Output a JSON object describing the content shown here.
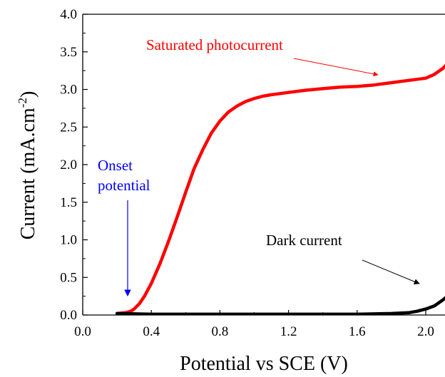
{
  "chart_data": {
    "type": "line",
    "xlabel": "Potential vs SCE (V)",
    "ylabel_main": "Current (mA.cm",
    "ylabel_sup": "-2",
    "ylabel_close": ")",
    "xlim": [
      0.0,
      2.2
    ],
    "ylim": [
      0.0,
      4.0
    ],
    "xticks": [
      0.0,
      0.4,
      0.8,
      1.2,
      1.6,
      2.0
    ],
    "xtick_labels": [
      "0.0",
      "0.4",
      "0.8",
      "1.2",
      "1.6",
      "2.0"
    ],
    "yticks": [
      0.0,
      0.5,
      1.0,
      1.5,
      2.0,
      2.5,
      3.0,
      3.5,
      4.0
    ],
    "ytick_labels": [
      "0.0",
      "0.5",
      "1.0",
      "1.5",
      "2.0",
      "2.5",
      "3.0",
      "3.5",
      "4.0"
    ],
    "grid": false,
    "series": [
      {
        "color": "#ff0000",
        "x": [
          0.2,
          0.25,
          0.28,
          0.3,
          0.33,
          0.36,
          0.4,
          0.45,
          0.5,
          0.55,
          0.6,
          0.65,
          0.7,
          0.75,
          0.8,
          0.85,
          0.9,
          0.95,
          1.0,
          1.05,
          1.1,
          1.2,
          1.3,
          1.4,
          1.5,
          1.6,
          1.7,
          1.8,
          1.9,
          2.0,
          2.05,
          2.1,
          2.15,
          2.2
        ],
        "y": [
          0.02,
          0.03,
          0.05,
          0.08,
          0.15,
          0.25,
          0.42,
          0.68,
          0.98,
          1.3,
          1.63,
          1.95,
          2.2,
          2.42,
          2.58,
          2.7,
          2.78,
          2.84,
          2.88,
          2.91,
          2.93,
          2.96,
          2.99,
          3.01,
          3.03,
          3.04,
          3.06,
          3.09,
          3.12,
          3.15,
          3.2,
          3.28,
          3.4,
          3.55
        ]
      },
      {
        "color": "#000000",
        "x": [
          0.2,
          0.4,
          0.8,
          1.2,
          1.6,
          1.8,
          1.9,
          1.95,
          2.0,
          2.05,
          2.1,
          2.15,
          2.2
        ],
        "y": [
          0.02,
          0.01,
          0.01,
          0.01,
          0.01,
          0.02,
          0.03,
          0.05,
          0.08,
          0.12,
          0.2,
          0.3,
          0.42
        ]
      }
    ],
    "annotations": [
      {
        "text": "Saturated photocurrent",
        "color": "#ff0000"
      },
      {
        "text": "Onset",
        "color": "#0000ff"
      },
      {
        "text": "potential",
        "color": "#0000ff"
      },
      {
        "text": "Dark current",
        "color": "#000000"
      }
    ]
  }
}
